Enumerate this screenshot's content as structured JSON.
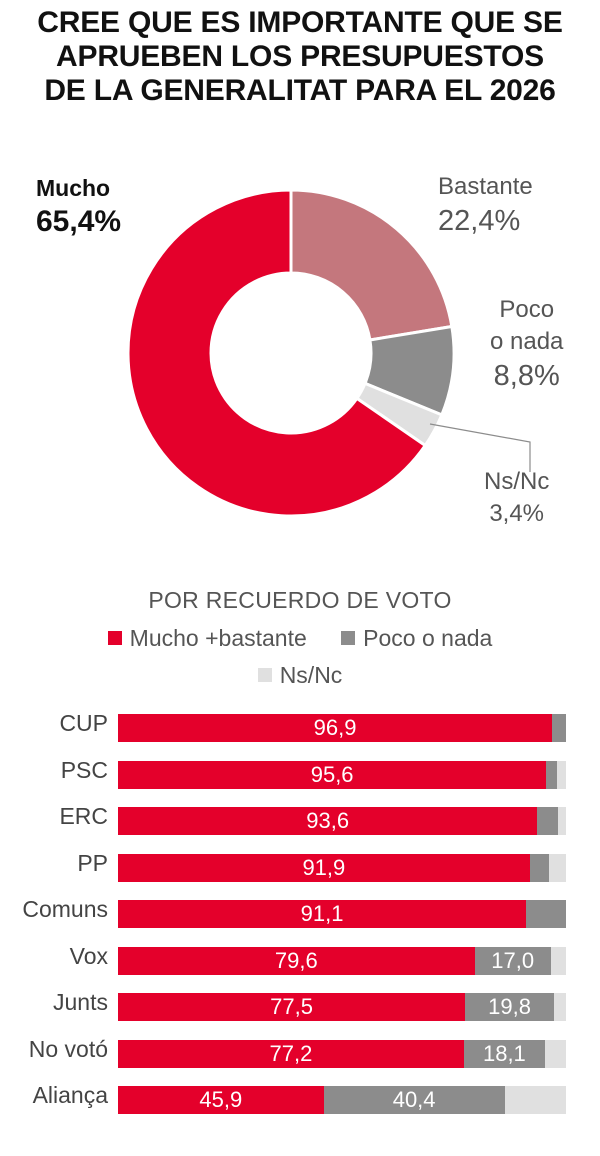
{
  "title": {
    "line1": "CREE QUE ES IMPORTANTE QUE SE",
    "line2": "APRUEBEN LOS PRESUPUESTOS",
    "line3": "DE LA GENERALITAT PARA EL 2026"
  },
  "colors": {
    "mucho": "#e4002b",
    "bastante": "#c4777d",
    "poco": "#8c8c8c",
    "nsnc": "#e0e0e0",
    "title": "#111111",
    "text": "#555555"
  },
  "chart_data": [
    {
      "type": "pie",
      "title": "CREE QUE ES IMPORTANTE QUE SE APRUEBEN LOS PRESUPUESTOS DE LA GENERALITAT PARA EL 2026",
      "slices": [
        {
          "label": "Bastante",
          "value": 22.4,
          "value_label": "22,4%",
          "color": "#c4777d"
        },
        {
          "label": "Poco\no nada",
          "label_line1": "Poco",
          "label_line2": "o nada",
          "value": 8.8,
          "value_label": "8,8%",
          "color": "#8c8c8c"
        },
        {
          "label": "Ns/Nc",
          "value": 3.4,
          "value_label": "3,4%",
          "color": "#e0e0e0"
        },
        {
          "label": "Mucho",
          "value": 65.4,
          "value_label": "65,4%",
          "color": "#e4002b"
        }
      ]
    },
    {
      "type": "bar",
      "orientation": "horizontal",
      "stacked": true,
      "title": "POR RECUERDO DE VOTO",
      "categories": [
        "CUP",
        "PSC",
        "ERC",
        "PP",
        "Comuns",
        "Vox",
        "Junts",
        "No votó",
        "Aliança"
      ],
      "xlim": [
        0,
        100
      ],
      "legend": "top",
      "series": [
        {
          "name": "Mucho +bastante",
          "color": "#e4002b",
          "values": [
            96.9,
            95.6,
            93.6,
            91.9,
            91.1,
            79.6,
            77.5,
            77.2,
            45.9
          ],
          "labels": [
            "96,9",
            "95,6",
            "93,6",
            "91,9",
            "91,1",
            "79,6",
            "77,5",
            "77,2",
            "45,9"
          ]
        },
        {
          "name": "Poco o nada",
          "color": "#8c8c8c",
          "values": [
            3.1,
            2.4,
            4.6,
            4.4,
            8.9,
            17.0,
            19.8,
            18.1,
            40.4
          ],
          "labels": [
            "",
            "",
            "",
            "",
            "",
            "17,0",
            "19,8",
            "18,1",
            "40,4"
          ]
        },
        {
          "name": "Ns/Nc",
          "color": "#e0e0e0",
          "values": [
            0.0,
            2.0,
            1.8,
            3.7,
            0.0,
            3.4,
            2.7,
            4.7,
            13.7
          ],
          "labels": [
            "",
            "",
            "",
            "",
            "",
            "",
            "",
            "",
            ""
          ]
        }
      ]
    }
  ]
}
